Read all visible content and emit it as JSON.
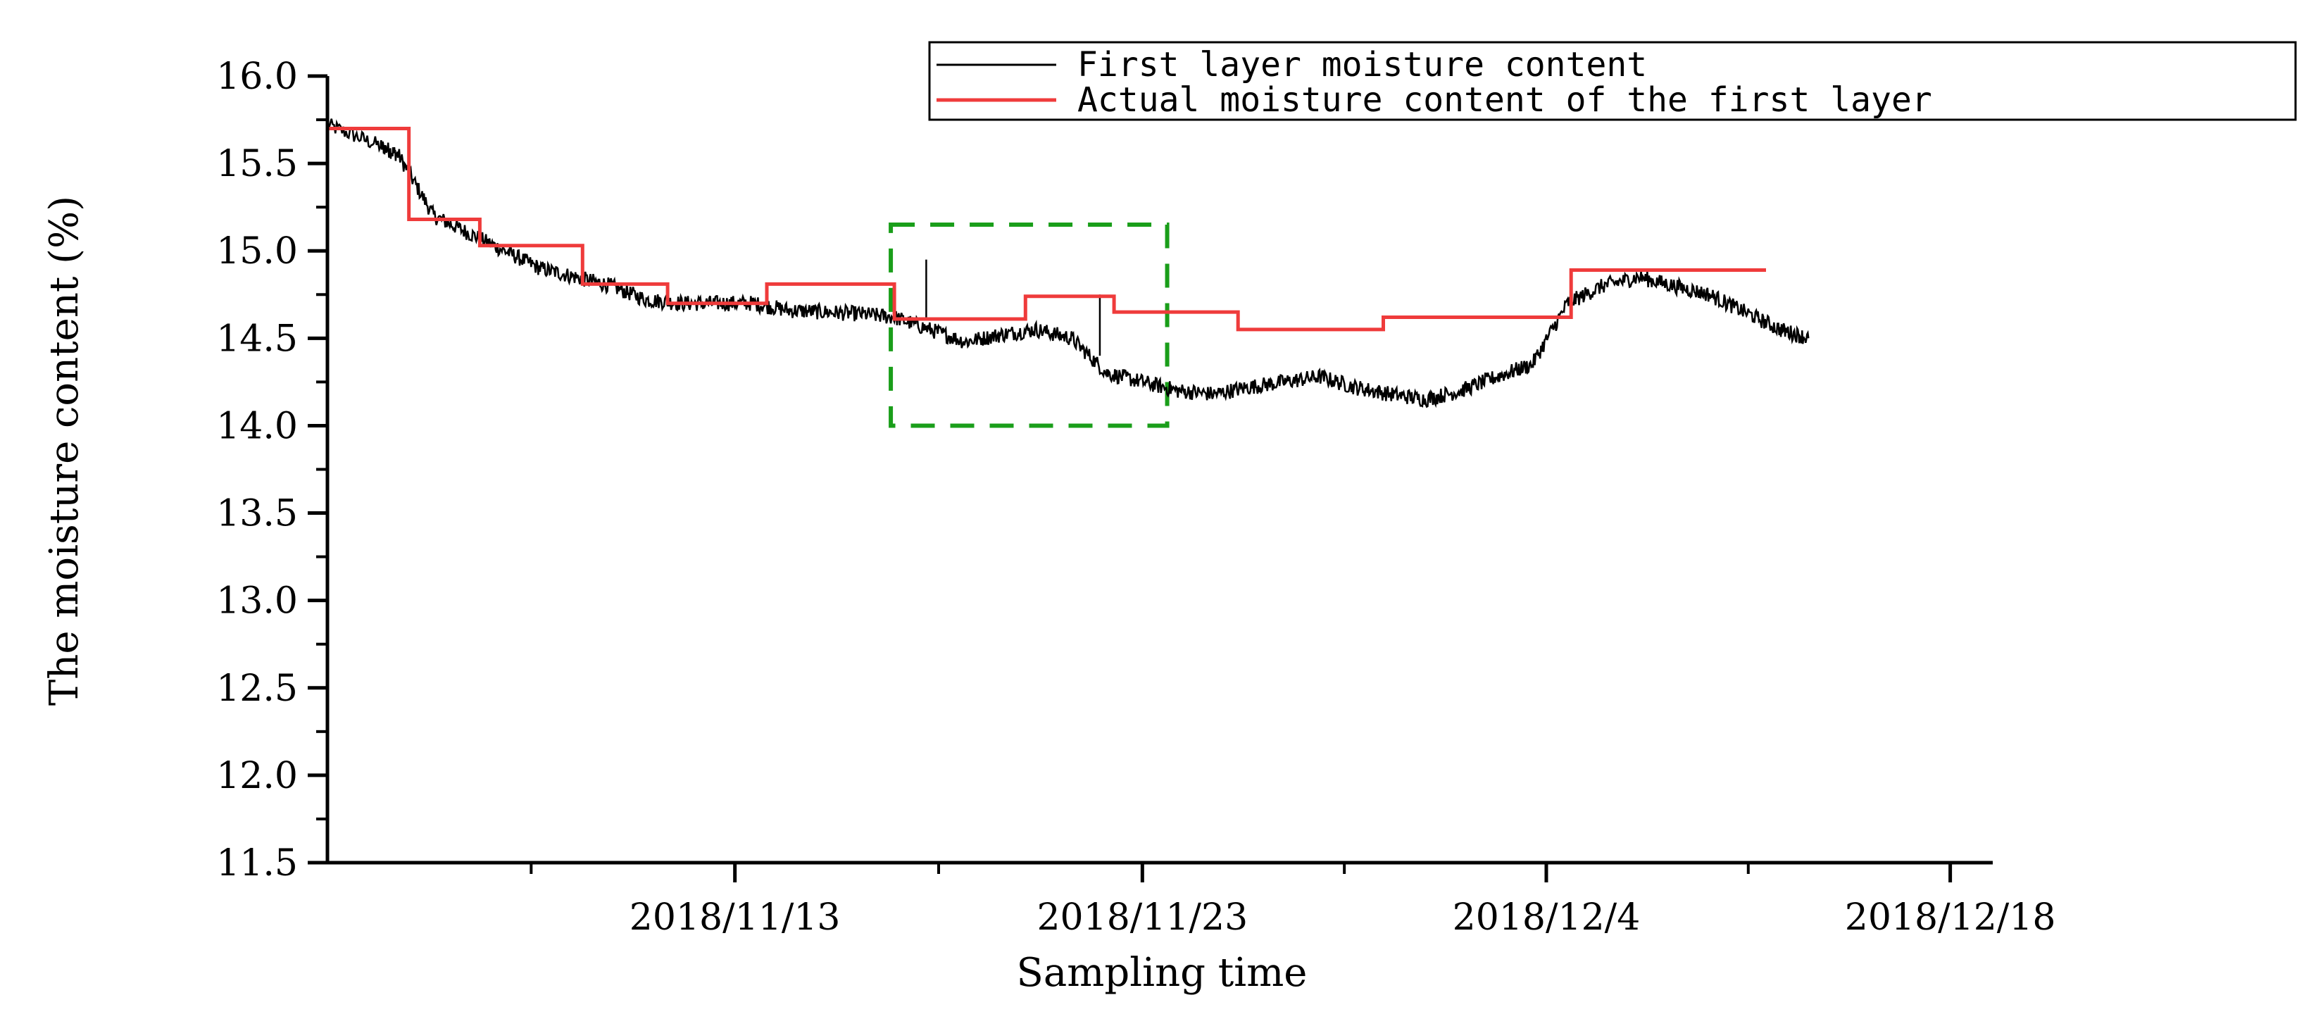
{
  "chart_data": {
    "type": "line",
    "xlabel": "Sampling time",
    "ylabel": "The moisture content (%)",
    "ylim": [
      11.5,
      16.0
    ],
    "y_ticks": [
      "16.0",
      "15.5",
      "15.0",
      "14.5",
      "14.0",
      "13.5",
      "13.0",
      "12.5",
      "12.0",
      "11.5"
    ],
    "x_tick_labels": [
      "2018/11/13",
      "2018/11/23",
      "2018/12/4",
      "2018/12/18"
    ],
    "legend_position": "top-right",
    "grid": false,
    "series": [
      {
        "name": "First layer moisture content",
        "color": "#000000",
        "style": "line",
        "x": [
          0.0,
          1.5,
          2.0,
          3.0,
          4.0,
          5.0,
          6.0,
          7.0,
          8.0,
          9.0,
          10.0,
          11.0,
          12.0,
          13.0,
          14.0,
          15.0,
          16.0,
          17.0,
          18.0,
          19.0,
          20.0,
          21.0,
          22.0,
          23.0,
          24.0,
          25.0,
          26.0,
          27.0,
          28.0,
          29.0,
          30.0,
          31.0,
          32.0,
          33.0,
          34.0,
          35.0,
          36.0,
          37.0,
          38.0,
          39.0,
          40.0,
          41.0,
          41.8
        ],
        "y": [
          15.72,
          15.6,
          15.55,
          15.2,
          15.1,
          15.0,
          14.9,
          14.85,
          14.8,
          14.72,
          14.7,
          14.7,
          14.7,
          14.66,
          14.65,
          14.64,
          14.62,
          14.55,
          14.48,
          14.52,
          14.55,
          14.5,
          14.3,
          14.25,
          14.2,
          14.18,
          14.22,
          14.25,
          14.28,
          14.22,
          14.18,
          14.15,
          14.2,
          14.28,
          14.35,
          14.7,
          14.8,
          14.85,
          14.8,
          14.75,
          14.65,
          14.55,
          14.5
        ]
      },
      {
        "name": "Actual moisture content of the first layer",
        "color": "#ef3b3b",
        "style": "step",
        "x": [
          0.0,
          2.3,
          2.3,
          4.3,
          4.3,
          7.2,
          7.2,
          9.6,
          9.6,
          12.4,
          12.4,
          16.0,
          16.0,
          19.7,
          19.7,
          22.2,
          22.2,
          25.7,
          25.7,
          29.8,
          29.8,
          35.1,
          35.1,
          40.6
        ],
        "y": [
          15.7,
          15.7,
          15.18,
          15.18,
          15.03,
          15.03,
          14.81,
          14.81,
          14.7,
          14.7,
          14.81,
          14.81,
          14.61,
          14.61,
          14.74,
          14.74,
          14.65,
          14.65,
          14.55,
          14.55,
          14.62,
          14.62,
          14.89,
          14.89
        ]
      }
    ],
    "annotation": {
      "type": "dashed-rectangle",
      "color": "#1a9e1a",
      "x": [
        15.9,
        23.7
      ],
      "y": [
        14.0,
        15.15
      ]
    }
  }
}
